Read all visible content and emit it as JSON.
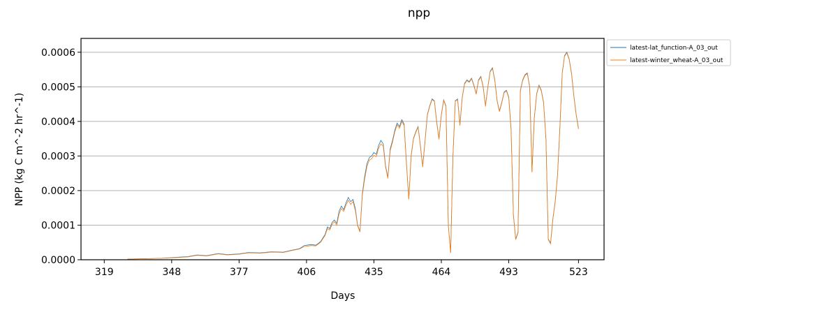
{
  "chart_data": {
    "type": "line",
    "title": "npp",
    "xlabel": "Days",
    "ylabel": "NPP (kg C m^-2 hr^-1)",
    "xlim": [
      309,
      534
    ],
    "ylim": [
      0,
      0.00064
    ],
    "grid": "horizontal",
    "legend_position": "outside-right-top",
    "x_ticks": [
      319,
      348,
      377,
      406,
      435,
      464,
      493,
      523
    ],
    "y_ticks": [
      0.0,
      0.0001,
      0.0002,
      0.0003,
      0.0004,
      0.0005,
      0.0006
    ],
    "y_tick_labels": [
      "0.0000",
      "0.0001",
      "0.0002",
      "0.0003",
      "0.0004",
      "0.0005",
      "0.0006"
    ],
    "series": [
      {
        "name": "latest-lat_function-A_03_out",
        "color": "#1f77b4",
        "points": [
          [
            329,
            2e-06
          ],
          [
            336,
            3e-06
          ],
          [
            343,
            4e-06
          ],
          [
            350,
            7e-06
          ],
          [
            355,
            9e-06
          ],
          [
            359,
            1.4e-05
          ],
          [
            363,
            1.2e-05
          ],
          [
            368,
            1.8e-05
          ],
          [
            372,
            1.5e-05
          ],
          [
            377,
            1.7e-05
          ],
          [
            381,
            2.1e-05
          ],
          [
            386,
            2e-05
          ],
          [
            391,
            2.3e-05
          ],
          [
            396,
            2.2e-05
          ],
          [
            400,
            2.8e-05
          ],
          [
            403,
            3.2e-05
          ],
          [
            405,
            4.1e-05
          ],
          [
            408,
            4.4e-05
          ],
          [
            410,
            4.2e-05
          ],
          [
            412,
            5.2e-05
          ],
          [
            414,
            7.3e-05
          ],
          [
            415,
            9.5e-05
          ],
          [
            416,
            9e-05
          ],
          [
            417,
            0.000108
          ],
          [
            418,
            0.000115
          ],
          [
            419,
            0.000105
          ],
          [
            420,
            0.00014
          ],
          [
            421,
            0.000155
          ],
          [
            422,
            0.000145
          ],
          [
            423,
            0.000165
          ],
          [
            424,
            0.00018
          ],
          [
            425,
            0.000168
          ],
          [
            426,
            0.000174
          ],
          [
            427,
            0.000148
          ],
          [
            428,
            0.0001
          ],
          [
            429,
            8.2e-05
          ],
          [
            430,
            0.00019
          ],
          [
            431,
            0.00024
          ],
          [
            432,
            0.000278
          ],
          [
            433,
            0.000295
          ],
          [
            434,
            0.0003
          ],
          [
            435,
            0.00031
          ],
          [
            436,
            0.000305
          ],
          [
            437,
            0.00033
          ],
          [
            438,
            0.000345
          ],
          [
            439,
            0.000335
          ],
          [
            440,
            0.000272
          ],
          [
            441,
            0.000238
          ],
          [
            442,
            0.00032
          ],
          [
            443,
            0.000345
          ],
          [
            444,
            0.000375
          ],
          [
            445,
            0.000395
          ],
          [
            446,
            0.000385
          ],
          [
            447,
            0.000405
          ],
          [
            448,
            0.000392
          ],
          [
            449,
            0.00028
          ],
          [
            450,
            0.000175
          ],
          [
            451,
            0.0003
          ],
          [
            452,
            0.00035
          ],
          [
            453,
            0.00037
          ],
          [
            454,
            0.000385
          ],
          [
            455,
            0.00033
          ],
          [
            456,
            0.00027
          ],
          [
            457,
            0.000345
          ],
          [
            458,
            0.00042
          ],
          [
            459,
            0.000445
          ],
          [
            460,
            0.000465
          ],
          [
            461,
            0.00046
          ],
          [
            462,
            0.0004
          ],
          [
            463,
            0.00035
          ],
          [
            464,
            0.00042
          ],
          [
            465,
            0.000462
          ],
          [
            466,
            0.000445
          ],
          [
            467,
            0.0001
          ],
          [
            468,
            2e-05
          ],
          [
            469,
            0.0003
          ],
          [
            470,
            0.00046
          ],
          [
            471,
            0.000465
          ],
          [
            472,
            0.00039
          ],
          [
            473,
            0.00047
          ],
          [
            474,
            0.00051
          ],
          [
            475,
            0.00052
          ],
          [
            476,
            0.000515
          ],
          [
            477,
            0.000525
          ],
          [
            478,
            0.000505
          ],
          [
            479,
            0.00048
          ],
          [
            480,
            0.00052
          ],
          [
            481,
            0.00053
          ],
          [
            482,
            0.0005
          ],
          [
            483,
            0.000445
          ],
          [
            484,
            0.0005
          ],
          [
            485,
            0.000545
          ],
          [
            486,
            0.000555
          ],
          [
            487,
            0.00052
          ],
          [
            488,
            0.00046
          ],
          [
            489,
            0.00043
          ],
          [
            490,
            0.000455
          ],
          [
            491,
            0.000485
          ],
          [
            492,
            0.00049
          ],
          [
            493,
            0.00047
          ],
          [
            494,
            0.00038
          ],
          [
            495,
            0.00013
          ],
          [
            496,
            6e-05
          ],
          [
            497,
            8e-05
          ],
          [
            498,
            0.00049
          ],
          [
            499,
            0.00052
          ],
          [
            500,
            0.000535
          ],
          [
            501,
            0.00054
          ],
          [
            502,
            0.0005
          ],
          [
            503,
            0.000255
          ],
          [
            504,
            0.00041
          ],
          [
            505,
            0.00048
          ],
          [
            506,
            0.000505
          ],
          [
            507,
            0.00049
          ],
          [
            508,
            0.000455
          ],
          [
            509,
            0.00035
          ],
          [
            510,
            6e-05
          ],
          [
            511,
            4.8e-05
          ],
          [
            512,
            0.00012
          ],
          [
            513,
            0.00017
          ],
          [
            514,
            0.000245
          ],
          [
            515,
            0.000385
          ],
          [
            516,
            0.00054
          ],
          [
            517,
            0.00059
          ],
          [
            518,
            0.0006
          ],
          [
            519,
            0.00058
          ],
          [
            520,
            0.00054
          ],
          [
            521,
            0.000475
          ],
          [
            522,
            0.00042
          ],
          [
            523,
            0.00038
          ]
        ]
      },
      {
        "name": "latest-winter_wheat-A_03_out",
        "color": "#ff7f0e",
        "points": [
          [
            329,
            2e-06
          ],
          [
            336,
            3e-06
          ],
          [
            343,
            4e-06
          ],
          [
            350,
            6e-06
          ],
          [
            355,
            8e-06
          ],
          [
            359,
            1.3e-05
          ],
          [
            363,
            1.1e-05
          ],
          [
            368,
            1.7e-05
          ],
          [
            372,
            1.4e-05
          ],
          [
            377,
            1.6e-05
          ],
          [
            381,
            2e-05
          ],
          [
            386,
            1.9e-05
          ],
          [
            391,
            2.2e-05
          ],
          [
            396,
            2.1e-05
          ],
          [
            400,
            2.7e-05
          ],
          [
            403,
            3.1e-05
          ],
          [
            405,
            3.8e-05
          ],
          [
            408,
            4.1e-05
          ],
          [
            410,
            4e-05
          ],
          [
            412,
            5e-05
          ],
          [
            414,
            7e-05
          ],
          [
            415,
            9e-05
          ],
          [
            416,
            8.6e-05
          ],
          [
            417,
            0.000102
          ],
          [
            418,
            0.00011
          ],
          [
            419,
            0.0001
          ],
          [
            420,
            0.000132
          ],
          [
            421,
            0.000148
          ],
          [
            422,
            0.00014
          ],
          [
            423,
            0.000158
          ],
          [
            424,
            0.000172
          ],
          [
            425,
            0.00016
          ],
          [
            426,
            0.000168
          ],
          [
            427,
            0.000142
          ],
          [
            428,
            9.8e-05
          ],
          [
            429,
            8e-05
          ],
          [
            430,
            0.000185
          ],
          [
            431,
            0.000232
          ],
          [
            432,
            0.00027
          ],
          [
            433,
            0.000288
          ],
          [
            434,
            0.000292
          ],
          [
            435,
            0.000302
          ],
          [
            436,
            0.000298
          ],
          [
            437,
            0.000322
          ],
          [
            438,
            0.000335
          ],
          [
            439,
            0.000328
          ],
          [
            440,
            0.000268
          ],
          [
            441,
            0.000235
          ],
          [
            442,
            0.000315
          ],
          [
            443,
            0.00034
          ],
          [
            444,
            0.00037
          ],
          [
            445,
            0.00039
          ],
          [
            446,
            0.00038
          ],
          [
            447,
            0.0004
          ],
          [
            448,
            0.000388
          ],
          [
            449,
            0.000278
          ],
          [
            450,
            0.000175
          ],
          [
            451,
            0.000298
          ],
          [
            452,
            0.000348
          ],
          [
            453,
            0.000368
          ],
          [
            454,
            0.000383
          ],
          [
            455,
            0.000328
          ],
          [
            456,
            0.000268
          ],
          [
            457,
            0.000343
          ],
          [
            458,
            0.000418
          ],
          [
            459,
            0.000443
          ],
          [
            460,
            0.000463
          ],
          [
            461,
            0.000458
          ],
          [
            462,
            0.000398
          ],
          [
            463,
            0.000348
          ],
          [
            464,
            0.000418
          ],
          [
            465,
            0.00046
          ],
          [
            466,
            0.000443
          ],
          [
            467,
            9.8e-05
          ],
          [
            468,
            2e-05
          ],
          [
            469,
            0.000298
          ],
          [
            470,
            0.000458
          ],
          [
            471,
            0.000463
          ],
          [
            472,
            0.000388
          ],
          [
            473,
            0.000468
          ],
          [
            474,
            0.000508
          ],
          [
            475,
            0.000518
          ],
          [
            476,
            0.000513
          ],
          [
            477,
            0.000523
          ],
          [
            478,
            0.000503
          ],
          [
            479,
            0.000478
          ],
          [
            480,
            0.000518
          ],
          [
            481,
            0.000528
          ],
          [
            482,
            0.000498
          ],
          [
            483,
            0.000443
          ],
          [
            484,
            0.000498
          ],
          [
            485,
            0.000543
          ],
          [
            486,
            0.000553
          ],
          [
            487,
            0.000518
          ],
          [
            488,
            0.000458
          ],
          [
            489,
            0.000428
          ],
          [
            490,
            0.000453
          ],
          [
            491,
            0.000483
          ],
          [
            492,
            0.000488
          ],
          [
            493,
            0.000468
          ],
          [
            494,
            0.000378
          ],
          [
            495,
            0.000128
          ],
          [
            496,
            5.8e-05
          ],
          [
            497,
            7.8e-05
          ],
          [
            498,
            0.000488
          ],
          [
            499,
            0.000518
          ],
          [
            500,
            0.000533
          ],
          [
            501,
            0.000538
          ],
          [
            502,
            0.000498
          ],
          [
            503,
            0.000253
          ],
          [
            504,
            0.000408
          ],
          [
            505,
            0.000478
          ],
          [
            506,
            0.000503
          ],
          [
            507,
            0.000488
          ],
          [
            508,
            0.000453
          ],
          [
            509,
            0.000348
          ],
          [
            510,
            5.8e-05
          ],
          [
            511,
            4.6e-05
          ],
          [
            512,
            0.000118
          ],
          [
            513,
            0.000168
          ],
          [
            514,
            0.000243
          ],
          [
            515,
            0.000383
          ],
          [
            516,
            0.000538
          ],
          [
            517,
            0.000588
          ],
          [
            518,
            0.000598
          ],
          [
            519,
            0.000578
          ],
          [
            520,
            0.000538
          ],
          [
            521,
            0.000473
          ],
          [
            522,
            0.000418
          ],
          [
            523,
            0.000378
          ]
        ]
      }
    ]
  }
}
